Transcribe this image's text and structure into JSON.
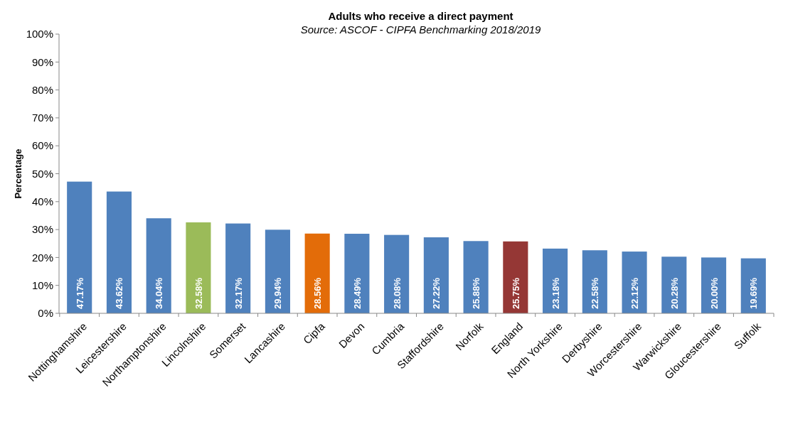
{
  "chart_data": {
    "type": "bar",
    "title": "Adults who receive a direct payment",
    "subtitle": "Source: ASCOF - CIPFA Benchmarking 2018/2019",
    "ylabel": "Percentage",
    "categories": [
      "Nottinghamshire",
      "Leicestershire",
      "Northamptonshire",
      "Lincolnshire",
      "Somerset",
      "Lancashire",
      "Cipfa",
      "Devon",
      "Cumbria",
      "Staffordshire",
      "Norfolk",
      "England",
      "North Yorkshire",
      "Derbyshire",
      "Worcestershire",
      "Warwickshire",
      "Gloucestershire",
      "Suffolk"
    ],
    "values": [
      47.17,
      43.62,
      34.04,
      32.58,
      32.17,
      29.94,
      28.56,
      28.49,
      28.08,
      27.22,
      25.88,
      25.75,
      23.18,
      22.58,
      22.12,
      20.28,
      20.0,
      19.69
    ],
    "value_labels": [
      "47.17%",
      "43.62%",
      "34.04%",
      "32.58%",
      "32.17%",
      "29.94%",
      "28.56%",
      "28.49%",
      "28.08%",
      "27.22%",
      "25.88%",
      "25.75%",
      "23.18%",
      "22.58%",
      "22.12%",
      "20.28%",
      "20.00%",
      "19.69%"
    ],
    "colors": [
      "#4f81bd",
      "#4f81bd",
      "#4f81bd",
      "#9bbb59",
      "#4f81bd",
      "#4f81bd",
      "#e36c09",
      "#4f81bd",
      "#4f81bd",
      "#4f81bd",
      "#4f81bd",
      "#953735",
      "#4f81bd",
      "#4f81bd",
      "#4f81bd",
      "#4f81bd",
      "#4f81bd",
      "#4f81bd"
    ],
    "ylim": [
      0,
      100
    ],
    "yticks": [
      {
        "value": 0,
        "label": "0%"
      },
      {
        "value": 10,
        "label": "10%"
      },
      {
        "value": 20,
        "label": "20%"
      },
      {
        "value": 30,
        "label": "30%"
      },
      {
        "value": 40,
        "label": "40%"
      },
      {
        "value": 50,
        "label": "50%"
      },
      {
        "value": 60,
        "label": "60%"
      },
      {
        "value": 70,
        "label": "70%"
      },
      {
        "value": 80,
        "label": "80%"
      },
      {
        "value": 90,
        "label": "90%"
      },
      {
        "value": 100,
        "label": "100%"
      }
    ],
    "grid": false
  }
}
